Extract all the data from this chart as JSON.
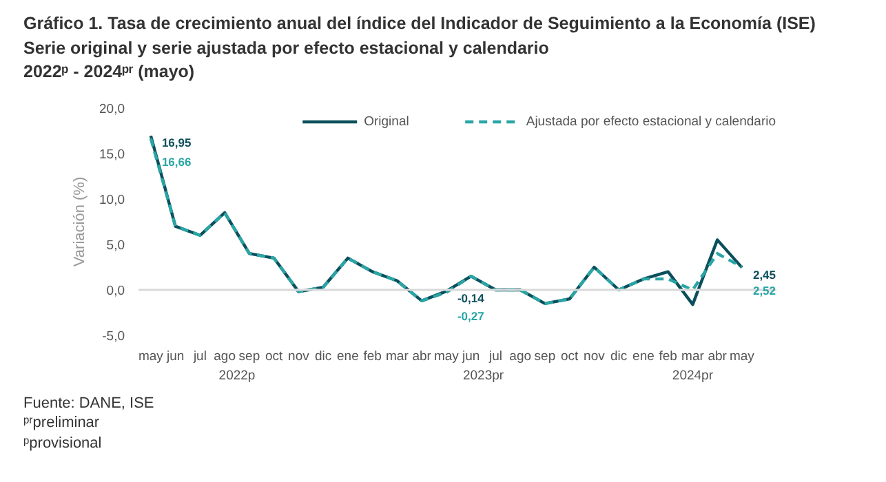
{
  "chart_data": {
    "type": "line",
    "title": "Gráfico 1. Tasa de crecimiento anual del índice del Indicador de Seguimiento a la Economía (ISE)",
    "subtitle": "Serie original y serie ajustada por efecto estacional y calendario\n2022ᵖ - 2024ᵖʳ (mayo)",
    "ylabel": "Variación (%)",
    "categories": [
      "may",
      "jun",
      "jul",
      "ago",
      "sep",
      "oct",
      "nov",
      "dic",
      "ene",
      "feb",
      "mar",
      "abr",
      "may",
      "jun",
      "jul",
      "ago",
      "sep",
      "oct",
      "nov",
      "dic",
      "ene",
      "feb",
      "mar",
      "abr",
      "may"
    ],
    "series": [
      {
        "name": "Original",
        "color": "#0b4f5c",
        "line_style": "solid",
        "values": [
          16.95,
          7.0,
          6.0,
          8.5,
          4.0,
          3.5,
          -0.2,
          0.3,
          3.5,
          2.0,
          1.0,
          -1.2,
          -0.14,
          1.5,
          0.0,
          0.0,
          -1.5,
          -1.0,
          2.5,
          0.0,
          1.2,
          2.0,
          -1.6,
          5.5,
          2.45
        ],
        "value_labels": [
          "16,95",
          null,
          null,
          null,
          null,
          null,
          null,
          null,
          null,
          null,
          null,
          null,
          "-0,14",
          null,
          null,
          null,
          null,
          null,
          null,
          null,
          null,
          null,
          null,
          null,
          "2,45"
        ]
      },
      {
        "name": "Ajustada por efecto estacional y calendario",
        "color": "#2aa5a5",
        "line_style": "dashed",
        "values": [
          16.66,
          7.0,
          6.0,
          8.5,
          4.0,
          3.5,
          -0.2,
          0.3,
          3.5,
          2.0,
          1.0,
          -1.2,
          -0.27,
          1.5,
          0.0,
          0.0,
          -1.5,
          -1.0,
          2.5,
          0.0,
          1.2,
          1.2,
          0.0,
          4.0,
          2.52
        ],
        "value_labels": [
          "16,66",
          null,
          null,
          null,
          null,
          null,
          null,
          null,
          null,
          null,
          null,
          null,
          "-0,27",
          null,
          null,
          null,
          null,
          null,
          null,
          null,
          null,
          null,
          null,
          null,
          "2,52"
        ]
      }
    ],
    "ylim": [
      -5,
      20
    ],
    "yticks": [
      {
        "value": -5,
        "label": "-5,0"
      },
      {
        "value": 0,
        "label": "0,0"
      },
      {
        "value": 5,
        "label": "5,0"
      },
      {
        "value": 10,
        "label": "10,0"
      },
      {
        "value": 15,
        "label": "15,0"
      },
      {
        "value": 20,
        "label": "20,0"
      }
    ],
    "ref_lines": [
      {
        "axis": "y",
        "value": 0,
        "label": null,
        "color": "#d9d9d9"
      }
    ],
    "grid": false,
    "legend": "top right",
    "marker": "none",
    "annotations": [
      "2022p",
      "2023pr",
      "2024pr",
      "Fuente: DANE, ISE",
      "ᵖʳpreliminar",
      "ᵖprovisional"
    ]
  }
}
